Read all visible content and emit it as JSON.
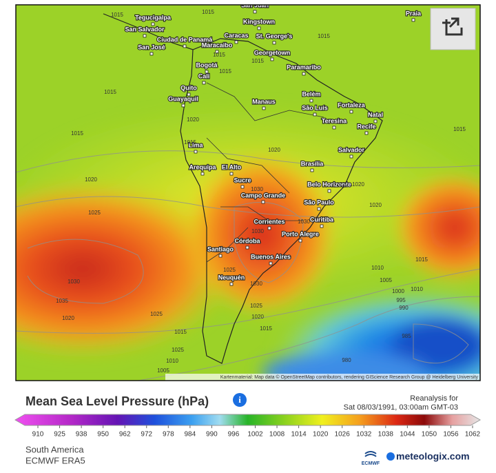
{
  "map": {
    "cities": [
      "Tegucigalpa",
      "San Salvador",
      "San José",
      "Ciudad de Panamá",
      "Maracaibo",
      "Caracas",
      "San Juan",
      "Kingstown",
      "St. George's",
      "Georgetown",
      "Paramaribo",
      "Bogotá",
      "Cali",
      "Quito",
      "Guayaquil",
      "Manaus",
      "Belém",
      "São Luís",
      "Fortaleza",
      "Teresina",
      "Natal",
      "Recife",
      "Salvador",
      "Lima",
      "Arequipa",
      "El Alto",
      "Brasília",
      "Sucre",
      "Belo Horizonte",
      "Campo Grande",
      "São Paulo",
      "Curitiba",
      "Corrientes",
      "Porto Alegre",
      "Córdoba",
      "Santiago",
      "Buenos Aires",
      "Neuquén",
      "Praia"
    ],
    "isobars": [
      "1015",
      "1015",
      "1015",
      "1015",
      "1015",
      "1015",
      "1015",
      "1015",
      "1020",
      "1015",
      "1020",
      "1020",
      "1020",
      "1025",
      "1030",
      "1030",
      "1035",
      "1030",
      "1025",
      "1030",
      "1030",
      "1025",
      "1020",
      "1015",
      "1025",
      "1020",
      "1015",
      "1010",
      "1010",
      "1005",
      "1005",
      "1000",
      "995",
      "990",
      "985",
      "980",
      "1015",
      "1020",
      "1020",
      "1015",
      "1010",
      "1025"
    ],
    "attribution": "Kartenmaterial: Map data © OpenStreetMap contributors, rendering GIScience Research Group @ Heidelberg University"
  },
  "footer": {
    "title": "Mean Sea Level Pressure (hPa)",
    "reanalysis": "Reanalysis for",
    "datetime": "Sat 08/03/1991, 03:00am GMT-03",
    "legend_ticks": [
      910,
      925,
      938,
      950,
      962,
      972,
      978,
      984,
      990,
      996,
      1002,
      1008,
      1014,
      1020,
      1026,
      1032,
      1038,
      1044,
      1050,
      1056,
      1062
    ],
    "region": "South America",
    "model": "ECMWF ERA5",
    "ecmwf_logo": "ECMWF",
    "brand": "meteologix.com"
  }
}
